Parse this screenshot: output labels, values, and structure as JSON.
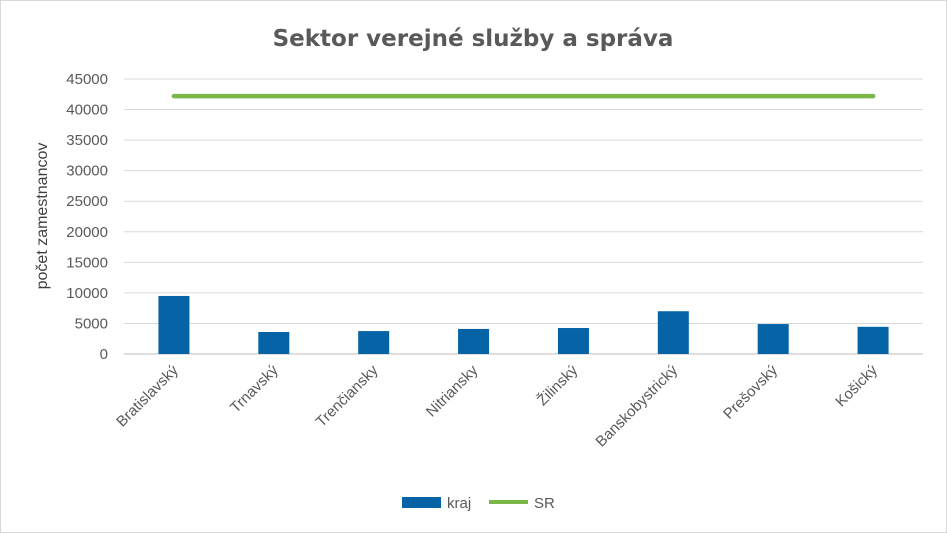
{
  "chart_data": {
    "type": "bar",
    "title": "Sektor verejné služby a správa",
    "ylabel": "počet zamestnancov",
    "xlabel": "",
    "categories": [
      "Bratislavský",
      "Trnavský",
      "Trenčiansky",
      "Nitriansky",
      "Žilinský",
      "Banskobystrický",
      "Prešovský",
      "Košický"
    ],
    "series": [
      {
        "name": "kraj",
        "type": "bar",
        "color": "#0563a6",
        "values": [
          9500,
          3600,
          3750,
          4100,
          4250,
          7000,
          4900,
          4450
        ]
      },
      {
        "name": "SR",
        "type": "line",
        "color": "#7ab648",
        "values": [
          42200,
          42200,
          42200,
          42200,
          42200,
          42200,
          42200,
          42200
        ]
      }
    ],
    "ylim": [
      0,
      45000
    ],
    "yticks": [
      0,
      5000,
      10000,
      15000,
      20000,
      25000,
      30000,
      35000,
      40000,
      45000
    ],
    "grid": true,
    "legend_position": "bottom"
  }
}
